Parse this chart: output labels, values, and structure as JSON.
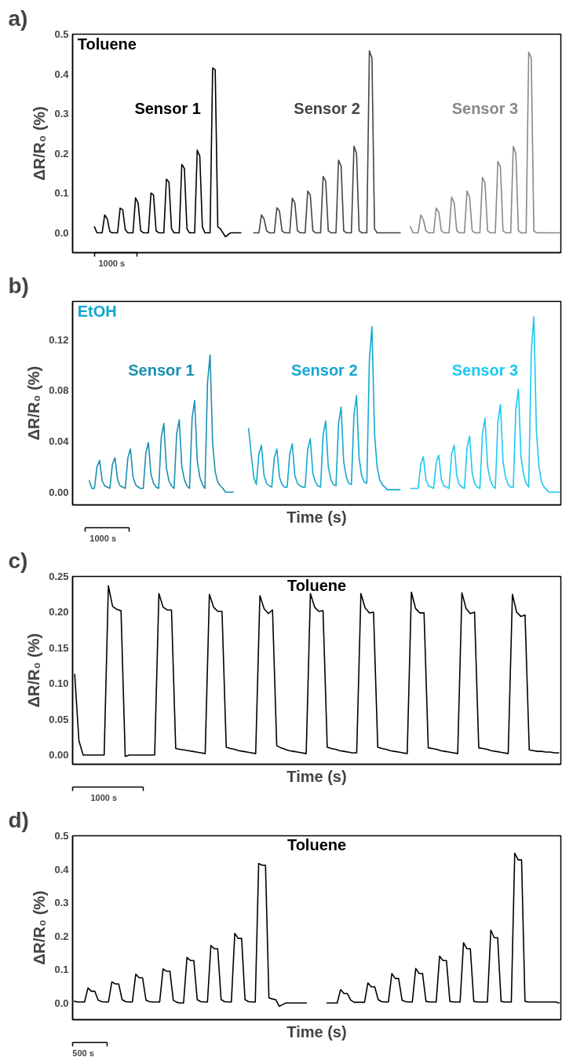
{
  "chart_data": [
    {
      "type": "line",
      "title": "a)",
      "ylabel": "ΔR/R₀ (%)",
      "tick_labels": "y",
      "annotations": [
        "Toluene",
        "1000 s"
      ],
      "categories": [
        null,
        null,
        null,
        null,
        null,
        null,
        null,
        null,
        null,
        null,
        null,
        null,
        null,
        null,
        null,
        null,
        null,
        null,
        null,
        null,
        null,
        null,
        null,
        null,
        null,
        null,
        null,
        null,
        null,
        null,
        null,
        null,
        null,
        null,
        null,
        null,
        null,
        null,
        null,
        null,
        null,
        null,
        null,
        null,
        null,
        null,
        null,
        null,
        null,
        null,
        null,
        null,
        null,
        null,
        null,
        null,
        null,
        null,
        null,
        null,
        null,
        null,
        null,
        null,
        null,
        null,
        null,
        null,
        null,
        null,
        null,
        null,
        null,
        null,
        null,
        null,
        null,
        null,
        null,
        null,
        null,
        null,
        null,
        null,
        null,
        null,
        null,
        null,
        null,
        null,
        null,
        null,
        null,
        null,
        null,
        null,
        null,
        null,
        null,
        null,
        null,
        null,
        null,
        null,
        null,
        null,
        null,
        null,
        null,
        null,
        null,
        null,
        null,
        null,
        null,
        null,
        null,
        null,
        null,
        null,
        null,
        null,
        null,
        null,
        null,
        null,
        null,
        null,
        null,
        null,
        null,
        null,
        null,
        null,
        null,
        null,
        null,
        null,
        null,
        null,
        null,
        null,
        null,
        null,
        null,
        null,
        null,
        null,
        null,
        null,
        null,
        null,
        null,
        null,
        null,
        null,
        null,
        null,
        null,
        null,
        null,
        null,
        null,
        null,
        null,
        null,
        null,
        null,
        null,
        null,
        null,
        null,
        null,
        null,
        null,
        null,
        null,
        null,
        null,
        null,
        null,
        null,
        null,
        null,
        null,
        null,
        null,
        null,
        null,
        null
      ],
      "ylim": [
        -0.05,
        0.5
      ],
      "yticks": [
        {
          "value": 0,
          "label": "0.0"
        },
        0.1,
        0.2,
        0.3,
        0.4,
        0.5
      ],
      "series": [
        {
          "name": "Sensor 1",
          "color": "#000000",
          "values": [
            null,
            null,
            null,
            null,
            null,
            null,
            null,
            null,
            0.015,
            0.0,
            0.0,
            0.0,
            0.045,
            0.035,
            0.003,
            0.0,
            0.0,
            0.0,
            0.062,
            0.058,
            0.008,
            0.0,
            0.0,
            0.0,
            0.088,
            0.075,
            0.005,
            0.0,
            0.0,
            0.0,
            0.1,
            0.095,
            0.005,
            0.0,
            0.0,
            0.0,
            0.135,
            0.128,
            0.01,
            0.0,
            0.0,
            0.0,
            0.172,
            0.162,
            0.01,
            0.0,
            0.0,
            0.0,
            0.208,
            0.193,
            0.015,
            0.0,
            0.0,
            0.0,
            0.415,
            0.41,
            0.015,
            0.01,
            0.0,
            -0.01,
            -0.005,
            0.0,
            0.0,
            0.0,
            0.0,
            0.0,
            null,
            null,
            null,
            null,
            null,
            null,
            null,
            null,
            null,
            null,
            null,
            null,
            null,
            null,
            null,
            null,
            null,
            null,
            null,
            null,
            null,
            null,
            null,
            null,
            null,
            null,
            null,
            null,
            null,
            null,
            null,
            null,
            null,
            null,
            null,
            null,
            null,
            null,
            null,
            null,
            null,
            null,
            null,
            null,
            null,
            null,
            null,
            null,
            null,
            null,
            null,
            null,
            null,
            null,
            null,
            null,
            null,
            null,
            null,
            null,
            null,
            null,
            null,
            null,
            null,
            null,
            null,
            null,
            null,
            null,
            null,
            null,
            null,
            null,
            null,
            null,
            null,
            null,
            null,
            null,
            null,
            null,
            null,
            null,
            null,
            null,
            null,
            null,
            null,
            null,
            null,
            null,
            null,
            null,
            null,
            null,
            null,
            null,
            null,
            null,
            null,
            null,
            null,
            null,
            null,
            null,
            null,
            null,
            null,
            null,
            null,
            null,
            null,
            null,
            null,
            null,
            null,
            null,
            null,
            null,
            null,
            null,
            null,
            null
          ]
        },
        {
          "name": "Sensor 2",
          "color": "#444444",
          "values": [
            null,
            null,
            null,
            null,
            null,
            null,
            null,
            null,
            null,
            null,
            null,
            null,
            null,
            null,
            null,
            null,
            null,
            null,
            null,
            null,
            null,
            null,
            null,
            null,
            null,
            null,
            null,
            null,
            null,
            null,
            null,
            null,
            null,
            null,
            null,
            null,
            null,
            null,
            null,
            null,
            null,
            null,
            null,
            null,
            null,
            null,
            null,
            null,
            null,
            null,
            null,
            null,
            null,
            null,
            null,
            null,
            null,
            null,
            null,
            null,
            null,
            null,
            null,
            null,
            null,
            null,
            null,
            null,
            null,
            null,
            0.0,
            0.0,
            0.0,
            0.045,
            0.035,
            0.005,
            0.0,
            0.0,
            0.0,
            0.063,
            0.055,
            0.005,
            0.0,
            0.0,
            0.0,
            0.087,
            0.075,
            0.005,
            0.0,
            0.0,
            0.0,
            0.105,
            0.095,
            0.005,
            0.0,
            0.0,
            0.0,
            0.142,
            0.13,
            0.005,
            0.0,
            0.0,
            0.0,
            0.183,
            0.168,
            0.005,
            0.0,
            0.0,
            0.0,
            0.218,
            0.2,
            0.005,
            0.0,
            0.0,
            0.0,
            0.458,
            0.44,
            0.01,
            0.0,
            0.0,
            0.0,
            0.0,
            0.0,
            0.0,
            0.0,
            0.0,
            0.0,
            0.0,
            null,
            null,
            null,
            null,
            null,
            null,
            null,
            null,
            null,
            null,
            null,
            null,
            null,
            null,
            null,
            null,
            null,
            null,
            null,
            null,
            null,
            null,
            null,
            null,
            null,
            null,
            null,
            null,
            null,
            null,
            null,
            null,
            null,
            null,
            null,
            null,
            null,
            null,
            null,
            null,
            null,
            null,
            null,
            null,
            null,
            null,
            null,
            null,
            null,
            null,
            null,
            null,
            null,
            null,
            null,
            null,
            null,
            null,
            null,
            null,
            null,
            null
          ]
        },
        {
          "name": "Sensor 3",
          "color": "#888888",
          "values": [
            null,
            null,
            null,
            null,
            null,
            null,
            null,
            null,
            null,
            null,
            null,
            null,
            null,
            null,
            null,
            null,
            null,
            null,
            null,
            null,
            null,
            null,
            null,
            null,
            null,
            null,
            null,
            null,
            null,
            null,
            null,
            null,
            null,
            null,
            null,
            null,
            null,
            null,
            null,
            null,
            null,
            null,
            null,
            null,
            null,
            null,
            null,
            null,
            null,
            null,
            null,
            null,
            null,
            null,
            null,
            null,
            null,
            null,
            null,
            null,
            null,
            null,
            null,
            null,
            null,
            null,
            null,
            null,
            null,
            null,
            null,
            null,
            null,
            null,
            null,
            null,
            null,
            null,
            null,
            null,
            null,
            null,
            null,
            null,
            null,
            null,
            null,
            null,
            null,
            null,
            null,
            null,
            null,
            null,
            null,
            null,
            null,
            null,
            null,
            null,
            null,
            null,
            null,
            null,
            null,
            null,
            null,
            null,
            null,
            null,
            null,
            null,
            null,
            null,
            null,
            null,
            null,
            null,
            null,
            null,
            null,
            null,
            null,
            null,
            null,
            null,
            null,
            null,
            null,
            null,
            null,
            0.015,
            0.0,
            0.0,
            0.0,
            0.045,
            0.033,
            0.005,
            0.0,
            0.0,
            0.0,
            0.062,
            0.052,
            0.005,
            0.0,
            0.0,
            0.0,
            0.09,
            0.075,
            0.005,
            0.0,
            0.0,
            0.0,
            0.105,
            0.09,
            0.005,
            0.0,
            0.0,
            0.0,
            0.14,
            0.125,
            0.005,
            0.0,
            0.0,
            0.0,
            0.18,
            0.165,
            0.005,
            0.0,
            0.0,
            0.0,
            0.218,
            0.2,
            0.005,
            0.0,
            0.0,
            0.0,
            0.455,
            0.44,
            0.005,
            0.0,
            0.0,
            0.0,
            0.0,
            0.0,
            0.0,
            0.0,
            0.0,
            0.0,
            0.0
          ]
        }
      ]
    },
    {
      "type": "line",
      "title": "b)",
      "xlabel": "Time (s)",
      "ylabel": "ΔR/R₀ (%)",
      "tick_labels": "y",
      "annotations": [
        "EtOH",
        "1000 s"
      ],
      "categories": [
        null,
        null,
        null,
        null,
        null,
        null,
        null,
        null,
        null,
        null,
        null,
        null,
        null,
        null,
        null,
        null,
        null,
        null,
        null,
        null,
        null,
        null,
        null,
        null,
        null,
        null,
        null,
        null,
        null,
        null,
        null,
        null,
        null,
        null,
        null,
        null,
        null,
        null,
        null,
        null,
        null,
        null,
        null,
        null,
        null,
        null,
        null,
        null,
        null,
        null,
        null,
        null,
        null,
        null,
        null,
        null,
        null,
        null,
        null,
        null,
        null,
        null,
        null,
        null,
        null,
        null,
        null,
        null,
        null,
        null,
        null,
        null,
        null,
        null,
        null,
        null,
        null,
        null,
        null,
        null,
        null,
        null,
        null,
        null,
        null,
        null,
        null,
        null,
        null,
        null,
        null,
        null,
        null,
        null,
        null,
        null,
        null,
        null,
        null,
        null,
        null,
        null,
        null,
        null,
        null,
        null,
        null,
        null,
        null,
        null,
        null,
        null,
        null,
        null,
        null,
        null,
        null,
        null,
        null,
        null,
        null,
        null,
        null,
        null,
        null,
        null,
        null,
        null,
        null,
        null,
        null,
        null,
        null,
        null,
        null,
        null,
        null,
        null,
        null,
        null,
        null,
        null,
        null,
        null,
        null,
        null,
        null,
        null,
        null,
        null,
        null,
        null,
        null,
        null,
        null,
        null,
        null,
        null,
        null,
        null,
        null,
        null,
        null,
        null,
        null,
        null,
        null,
        null,
        null,
        null,
        null,
        null,
        null,
        null,
        null,
        null,
        null,
        null,
        null,
        null,
        null,
        null,
        null,
        null,
        null,
        null,
        null,
        null,
        null,
        null
      ],
      "ylim": [
        -0.01,
        0.15
      ],
      "yticks": [
        {
          "value": 0,
          "label": "0.00"
        },
        {
          "value": 0.04,
          "label": "0.04"
        },
        {
          "value": 0.08,
          "label": "0.08"
        },
        {
          "value": 0.12,
          "label": "0.12"
        }
      ],
      "series": [
        {
          "name": "Sensor 1",
          "color": "#1a8fb0",
          "values": [
            null,
            null,
            null,
            null,
            null,
            null,
            0.009,
            0.003,
            0.003,
            0.02,
            0.025,
            0.009,
            0.005,
            0.004,
            0.003,
            0.022,
            0.027,
            0.01,
            0.005,
            0.004,
            0.003,
            0.027,
            0.034,
            0.012,
            0.006,
            0.004,
            0.003,
            0.003,
            0.031,
            0.039,
            0.014,
            0.007,
            0.004,
            0.003,
            0.043,
            0.054,
            0.019,
            0.009,
            0.005,
            0.003,
            0.046,
            0.057,
            0.02,
            0.01,
            0.005,
            0.003,
            0.058,
            0.072,
            0.025,
            0.012,
            0.006,
            0.003,
            0.086,
            0.108,
            0.038,
            0.016,
            0.008,
            0.005,
            0.003,
            0.0,
            0.0,
            0.0,
            0.0,
            null,
            null,
            null,
            null,
            null,
            null,
            null,
            null,
            null,
            null,
            null,
            null,
            null,
            null,
            null,
            null,
            null,
            null,
            null,
            null,
            null,
            null,
            null,
            null,
            null,
            null,
            null,
            null,
            null,
            null,
            null,
            null,
            null,
            null,
            null,
            null,
            null,
            null,
            null,
            null,
            null,
            null,
            null,
            null,
            null,
            null,
            null,
            null,
            null,
            null,
            null,
            null,
            null,
            null,
            null,
            null,
            null,
            null,
            null,
            null,
            null,
            null,
            null,
            null,
            null,
            null,
            null,
            null,
            null,
            null,
            null,
            null,
            null,
            null,
            null,
            null,
            null,
            null,
            null,
            null,
            null,
            null,
            null,
            null,
            null,
            null,
            null,
            null,
            null,
            null,
            null,
            null,
            null,
            null,
            null,
            null,
            null,
            null,
            null,
            null,
            null,
            null,
            null,
            null,
            null,
            null,
            null,
            null,
            null,
            null,
            null,
            null,
            null,
            null,
            null,
            null,
            null,
            null,
            null,
            null,
            null,
            null,
            null,
            null,
            null,
            null,
            null
          ]
        },
        {
          "name": "Sensor 2",
          "color": "#12a8d0",
          "values": [
            null,
            null,
            null,
            null,
            null,
            null,
            null,
            null,
            null,
            null,
            null,
            null,
            null,
            null,
            null,
            null,
            null,
            null,
            null,
            null,
            null,
            null,
            null,
            null,
            null,
            null,
            null,
            null,
            null,
            null,
            null,
            null,
            null,
            null,
            null,
            null,
            null,
            null,
            null,
            null,
            null,
            null,
            null,
            null,
            null,
            null,
            null,
            null,
            null,
            null,
            null,
            null,
            null,
            null,
            null,
            null,
            null,
            null,
            null,
            null,
            null,
            null,
            null,
            null,
            null,
            null,
            null,
            null,
            0.05,
            0.03,
            0.012,
            0.006,
            0.03,
            0.037,
            0.013,
            0.007,
            0.005,
            0.004,
            0.027,
            0.034,
            0.012,
            0.006,
            0.004,
            0.004,
            0.03,
            0.038,
            0.013,
            0.007,
            0.005,
            0.004,
            0.004,
            0.034,
            0.042,
            0.015,
            0.008,
            0.005,
            0.004,
            0.045,
            0.056,
            0.02,
            0.01,
            0.006,
            0.005,
            0.054,
            0.067,
            0.024,
            0.012,
            0.007,
            0.006,
            0.061,
            0.076,
            0.027,
            0.013,
            0.008,
            0.007,
            0.104,
            0.13,
            0.046,
            0.02,
            0.01,
            0.006,
            0.004,
            0.002,
            0.002,
            0.002,
            0.002,
            0.002,
            0.002,
            null,
            null,
            null,
            null,
            null,
            null,
            null,
            null,
            null,
            null,
            null,
            null,
            null,
            null,
            null,
            null,
            null,
            null,
            null,
            null,
            null,
            null,
            null,
            null,
            null,
            null,
            null,
            null,
            null,
            null,
            null,
            null,
            null,
            null,
            null,
            null,
            null,
            null,
            null,
            null,
            null,
            null,
            null,
            null,
            null,
            null,
            null,
            null,
            null,
            null,
            null,
            null,
            null,
            null,
            null,
            null,
            null,
            null,
            null,
            null,
            null,
            null
          ]
        },
        {
          "name": "Sensor 3",
          "color": "#1cc8f0",
          "values": [
            null,
            null,
            null,
            null,
            null,
            null,
            null,
            null,
            null,
            null,
            null,
            null,
            null,
            null,
            null,
            null,
            null,
            null,
            null,
            null,
            null,
            null,
            null,
            null,
            null,
            null,
            null,
            null,
            null,
            null,
            null,
            null,
            null,
            null,
            null,
            null,
            null,
            null,
            null,
            null,
            null,
            null,
            null,
            null,
            null,
            null,
            null,
            null,
            null,
            null,
            null,
            null,
            null,
            null,
            null,
            null,
            null,
            null,
            null,
            null,
            null,
            null,
            null,
            null,
            null,
            null,
            null,
            null,
            null,
            null,
            null,
            null,
            null,
            null,
            null,
            null,
            null,
            null,
            null,
            null,
            null,
            null,
            null,
            null,
            null,
            null,
            null,
            null,
            null,
            null,
            null,
            null,
            null,
            null,
            null,
            null,
            null,
            null,
            null,
            null,
            null,
            null,
            null,
            null,
            null,
            null,
            null,
            null,
            null,
            null,
            null,
            null,
            null,
            null,
            null,
            null,
            null,
            null,
            null,
            null,
            null,
            null,
            null,
            null,
            null,
            null,
            null,
            null,
            null,
            null,
            null,
            0.003,
            0.003,
            0.003,
            0.003,
            0.022,
            0.028,
            0.01,
            0.005,
            0.004,
            0.003,
            0.023,
            0.029,
            0.01,
            0.005,
            0.004,
            0.003,
            0.03,
            0.037,
            0.013,
            0.006,
            0.004,
            0.003,
            0.035,
            0.044,
            0.015,
            0.007,
            0.004,
            0.003,
            0.046,
            0.058,
            0.02,
            0.01,
            0.005,
            0.003,
            0.055,
            0.069,
            0.024,
            0.012,
            0.006,
            0.004,
            0.004,
            0.065,
            0.081,
            0.028,
            0.014,
            0.007,
            0.004,
            0.11,
            0.138,
            0.048,
            0.02,
            0.008,
            0.004,
            0.002,
            0.0,
            0.0,
            0.0,
            0.0,
            0.0
          ]
        }
      ]
    },
    {
      "type": "line",
      "title": "c)",
      "xlabel": "Time (s)",
      "ylabel": "ΔR/R₀ (%)",
      "tick_labels": "y",
      "annotations": [
        "Toluene",
        "1000 s"
      ],
      "categories": [
        null,
        null,
        null,
        null,
        null,
        null,
        null,
        null,
        null,
        null,
        null,
        null,
        null,
        null,
        null,
        null,
        null,
        null,
        null,
        null,
        null,
        null,
        null,
        null,
        null,
        null,
        null,
        null,
        null,
        null,
        null,
        null,
        null,
        null,
        null,
        null,
        null,
        null,
        null,
        null,
        null,
        null,
        null,
        null,
        null,
        null,
        null,
        null,
        null,
        null,
        null,
        null,
        null,
        null,
        null,
        null,
        null,
        null,
        null,
        null,
        null,
        null,
        null,
        null,
        null,
        null,
        null,
        null,
        null,
        null,
        null,
        null,
        null,
        null,
        null,
        null,
        null,
        null,
        null,
        null,
        null,
        null,
        null,
        null,
        null,
        null,
        null,
        null,
        null,
        null,
        null,
        null,
        null,
        null,
        null,
        null,
        null,
        null,
        null,
        null,
        null,
        null,
        null,
        null,
        null,
        null,
        null,
        null,
        null,
        null,
        null,
        null,
        null,
        null,
        null,
        null
      ],
      "ylim": [
        -0.013,
        0.25
      ],
      "yticks": [
        {
          "value": 0,
          "label": "0.00"
        },
        {
          "value": 0.05,
          "label": "0.05"
        },
        {
          "value": 0.1,
          "label": "0.10"
        },
        {
          "value": 0.15,
          "label": "0.15"
        },
        {
          "value": 0.2,
          "label": "0.20"
        },
        {
          "value": 0.25,
          "label": "0.25"
        }
      ],
      "series": [
        {
          "color": "#000000",
          "values": [
            0.113,
            0.02,
            0.0,
            0.0,
            0.0,
            0.0,
            0.0,
            0.0,
            0.237,
            0.208,
            0.204,
            0.202,
            -0.002,
            0.0,
            0.0,
            0.0,
            0.0,
            0.0,
            0.0,
            0.0,
            0.226,
            0.207,
            0.203,
            0.203,
            0.009,
            0.008,
            0.007,
            0.006,
            0.005,
            0.004,
            0.003,
            0.002,
            0.225,
            0.207,
            0.201,
            0.201,
            0.011,
            0.009,
            0.008,
            0.006,
            0.005,
            0.004,
            0.003,
            0.002,
            0.223,
            0.205,
            0.198,
            0.203,
            0.013,
            0.01,
            0.008,
            0.006,
            0.005,
            0.004,
            0.003,
            0.002,
            0.226,
            0.207,
            0.201,
            0.202,
            0.011,
            0.009,
            0.008,
            0.006,
            0.005,
            0.004,
            0.003,
            0.003,
            0.226,
            0.206,
            0.199,
            0.2,
            0.011,
            0.009,
            0.008,
            0.006,
            0.005,
            0.004,
            0.003,
            0.002,
            0.228,
            0.205,
            0.199,
            0.199,
            0.01,
            0.009,
            0.008,
            0.006,
            0.005,
            0.004,
            0.003,
            0.002,
            0.227,
            0.205,
            0.198,
            0.2,
            0.01,
            0.009,
            0.008,
            0.006,
            0.005,
            0.004,
            0.003,
            0.002,
            0.225,
            0.2,
            0.194,
            0.196,
            0.007,
            0.006,
            0.005,
            0.005,
            0.004,
            0.004,
            0.003,
            0.003
          ]
        }
      ]
    },
    {
      "type": "line",
      "title": "d)",
      "xlabel": "Time (s)",
      "ylabel": "ΔR/R₀ (%)",
      "tick_labels": "y",
      "annotations": [
        "Toluene",
        "500 s"
      ],
      "categories": [
        null,
        null,
        null,
        null,
        null,
        null,
        null,
        null,
        null,
        null,
        null,
        null,
        null,
        null,
        null,
        null,
        null,
        null,
        null,
        null,
        null,
        null,
        null,
        null,
        null,
        null,
        null,
        null,
        null,
        null,
        null,
        null,
        null,
        null,
        null,
        null,
        null,
        null,
        null,
        null,
        null,
        null,
        null,
        null,
        null,
        null,
        null,
        null,
        null,
        null,
        null,
        null,
        null,
        null,
        null,
        null,
        null,
        null,
        null,
        null,
        null,
        null,
        null,
        null,
        null,
        null,
        null,
        null,
        null,
        null,
        null,
        null,
        null,
        null,
        null,
        null,
        null,
        null,
        null,
        null,
        null,
        null,
        null,
        null,
        null,
        null,
        null,
        null,
        null,
        null,
        null,
        null,
        null,
        null,
        null,
        null,
        null,
        null,
        null,
        null,
        null,
        null,
        null,
        null,
        null,
        null,
        null,
        null,
        null,
        null,
        null,
        null,
        null,
        null,
        null,
        null,
        null,
        null,
        null,
        null,
        null,
        null,
        null,
        null,
        null,
        null,
        null,
        null,
        null,
        null,
        null,
        null,
        null,
        null,
        null,
        null,
        null,
        null,
        null,
        null,
        null,
        null,
        null
      ],
      "ylim": [
        -0.05,
        0.5
      ],
      "yticks": [
        {
          "value": 0,
          "label": "0.0"
        },
        0.1,
        0.2,
        0.3,
        0.4,
        0.5
      ],
      "series": [
        {
          "color": "#000000",
          "values": [
            0.005,
            0.003,
            0.003,
            0.003,
            0.045,
            0.035,
            0.035,
            0.008,
            0.004,
            0.003,
            0.003,
            0.063,
            0.057,
            0.057,
            0.01,
            0.004,
            0.003,
            0.003,
            0.086,
            0.075,
            0.075,
            0.008,
            0.004,
            0.003,
            0.003,
            0.003,
            0.102,
            0.095,
            0.095,
            0.008,
            0.002,
            0.0,
            0.0,
            0.136,
            0.127,
            0.127,
            0.01,
            0.004,
            0.003,
            0.003,
            0.172,
            0.162,
            0.162,
            0.01,
            0.004,
            0.003,
            0.003,
            0.208,
            0.193,
            0.193,
            0.01,
            0.004,
            0.003,
            0.003,
            0.417,
            0.412,
            0.412,
            0.015,
            0.012,
            0.01,
            -0.01,
            -0.005,
            0.0,
            0.0,
            0.0,
            0.0,
            0.0,
            0.0,
            0.0,
            null,
            null,
            null,
            null,
            null,
            0.0,
            0.0,
            0.0,
            0.0,
            0.04,
            0.028,
            0.028,
            0.008,
            0.002,
            0.002,
            0.002,
            0.002,
            0.06,
            0.048,
            0.048,
            0.01,
            0.004,
            0.003,
            0.003,
            0.088,
            0.073,
            0.073,
            0.008,
            0.004,
            0.003,
            0.003,
            0.103,
            0.088,
            0.088,
            0.005,
            0.003,
            0.003,
            0.003,
            0.14,
            0.127,
            0.127,
            0.005,
            0.003,
            0.003,
            0.003,
            0.18,
            0.162,
            0.162,
            0.005,
            0.003,
            0.003,
            0.003,
            0.003,
            0.218,
            0.195,
            0.195,
            0.005,
            0.003,
            0.003,
            0.003,
            0.448,
            0.428,
            0.428,
            0.005,
            0.003,
            0.003,
            0.003,
            0.003,
            0.003,
            0.003,
            0.003,
            0.003,
            0.003,
            0.0
          ]
        }
      ]
    }
  ]
}
